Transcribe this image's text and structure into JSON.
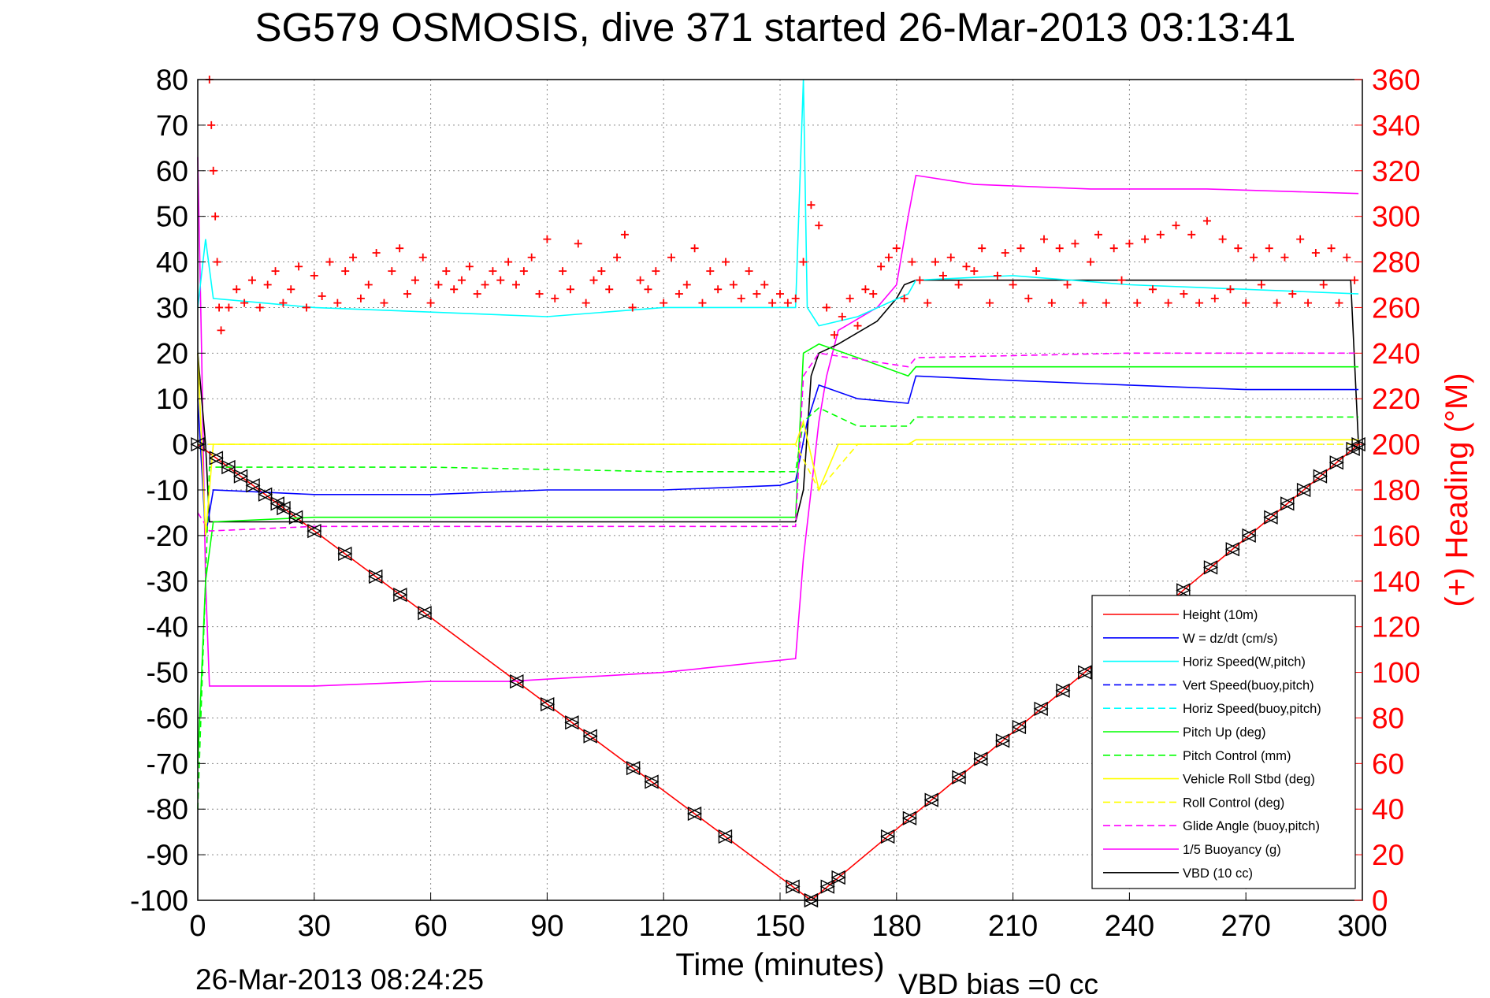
{
  "chart_data": {
    "type": "line",
    "title": "SG579 OSMOSIS, dive 371 started 26-Mar-2013 03:13:41",
    "xlabel": "Time (minutes)",
    "ylabel_right": "(+) Heading (°M)",
    "footer_left": "26-Mar-2013 08:24:25",
    "footer_right": "VBD bias =0 cc",
    "xlim": [
      0,
      300
    ],
    "ylim": [
      -100,
      80
    ],
    "ylim_right": [
      0,
      360
    ],
    "xticks": [
      "0",
      "30",
      "60",
      "90",
      "120",
      "150",
      "180",
      "210",
      "240",
      "270",
      "300"
    ],
    "yticks": [
      "80",
      "70",
      "60",
      "50",
      "40",
      "30",
      "20",
      "10",
      "0",
      "-10",
      "-20",
      "-30",
      "-40",
      "-50",
      "-60",
      "-70",
      "-80",
      "-90",
      "-100"
    ],
    "yticks_right": [
      "360",
      "340",
      "320",
      "300",
      "280",
      "260",
      "240",
      "220",
      "200",
      "180",
      "160",
      "140",
      "120",
      "100",
      "80",
      "60",
      "40",
      "20",
      "0"
    ],
    "grid": true,
    "legend_position": "bottom-right",
    "colors": {
      "height": "#ff0000",
      "w": "#0000ff",
      "horiz_speed": "#00ffff",
      "pitch": "#00ff00",
      "roll": "#ffff00",
      "glide": "#ff00ff",
      "buoyancy": "#ff00ff",
      "vbd": "#000000",
      "heading": "#ff0000",
      "markers": "#000000"
    },
    "legend": [
      {
        "name": "Height (10m)",
        "color": "#ff0000",
        "dash": "solid"
      },
      {
        "name": "W = dz/dt (cm/s)",
        "color": "#0000ff",
        "dash": "solid"
      },
      {
        "name": "Horiz Speed(W,pitch)",
        "color": "#00ffff",
        "dash": "solid"
      },
      {
        "name": "Vert Speed(buoy,pitch)",
        "color": "#0000ff",
        "dash": "dashed"
      },
      {
        "name": "Horiz Speed(buoy,pitch)",
        "color": "#00ffff",
        "dash": "dashed"
      },
      {
        "name": "Pitch Up (deg)",
        "color": "#00ff00",
        "dash": "solid"
      },
      {
        "name": "Pitch Control (mm)",
        "color": "#00ff00",
        "dash": "dashed"
      },
      {
        "name": "Vehicle Roll Stbd (deg)",
        "color": "#ffff00",
        "dash": "solid"
      },
      {
        "name": "Roll Control (deg)",
        "color": "#ffff00",
        "dash": "dashed"
      },
      {
        "name": "Glide Angle (buoy,pitch)",
        "color": "#ff00ff",
        "dash": "dashed"
      },
      {
        "name": "1/5 Buoyancy (g)",
        "color": "#ff00ff",
        "dash": "solid"
      },
      {
        "name": "VBD (10 cc)",
        "color": "#000000",
        "dash": "solid"
      }
    ],
    "series": [
      {
        "key": "height",
        "dash": "solid",
        "color": "#ff0000",
        "x": [
          0,
          158,
          299
        ],
        "y": [
          0,
          -100,
          0
        ]
      },
      {
        "key": "buoyancy",
        "dash": "solid",
        "color": "#ff00ff",
        "x": [
          0,
          1,
          2,
          3,
          30,
          60,
          80,
          120,
          154,
          156,
          160,
          162,
          165,
          175,
          180,
          183,
          185,
          200,
          230,
          260,
          299
        ],
        "y": [
          63,
          20,
          -30,
          -53,
          -53,
          -52,
          -52,
          -50,
          -47,
          -25,
          5,
          15,
          25,
          30,
          35,
          50,
          59,
          57,
          56,
          56,
          55
        ]
      },
      {
        "key": "vbd",
        "dash": "solid",
        "color": "#000000",
        "x": [
          0,
          2,
          3,
          154,
          156,
          158,
          160,
          165,
          175,
          180,
          182,
          185,
          240,
          297,
          299
        ],
        "y": [
          20,
          0,
          -17,
          -17,
          -10,
          15,
          20,
          22,
          27,
          32,
          35,
          36,
          36,
          36,
          0
        ]
      },
      {
        "key": "w",
        "dash": "solid",
        "color": "#0000ff",
        "x": [
          0,
          2,
          4,
          30,
          60,
          90,
          120,
          150,
          154,
          157,
          160,
          170,
          183,
          185,
          210,
          240,
          270,
          299
        ],
        "y": [
          10,
          -20,
          -10,
          -11,
          -11,
          -10,
          -10,
          -9,
          -8,
          5,
          13,
          10,
          9,
          15,
          14,
          13,
          12,
          12
        ]
      },
      {
        "key": "pitch",
        "dash": "solid",
        "color": "#00ff00",
        "x": [
          0,
          2,
          4,
          30,
          60,
          120,
          154,
          156,
          160,
          170,
          183,
          185,
          240,
          299
        ],
        "y": [
          -70,
          -30,
          -17,
          -16,
          -16,
          -16,
          -16,
          20,
          22,
          19,
          15,
          17,
          17,
          17
        ]
      },
      {
        "key": "pitch_control",
        "dash": "dashed",
        "color": "#00ff00",
        "x": [
          0,
          3,
          30,
          60,
          120,
          154,
          156,
          160,
          170,
          183,
          185,
          240,
          299
        ],
        "y": [
          -80,
          -5,
          -5,
          -5,
          -6,
          -6,
          5,
          8,
          4,
          4,
          6,
          6,
          6
        ]
      },
      {
        "key": "glide",
        "dash": "dashed",
        "color": "#ff00ff",
        "x": [
          0,
          3,
          30,
          60,
          120,
          154,
          156,
          160,
          183,
          185,
          240,
          299
        ],
        "y": [
          -15,
          -19,
          -18,
          -18,
          -18,
          -18,
          15,
          20,
          17,
          19,
          20,
          20
        ]
      },
      {
        "key": "horiz_speed",
        "dash": "solid",
        "color": "#00ffff",
        "x": [
          0,
          2,
          4,
          30,
          60,
          90,
          120,
          150,
          154,
          156,
          157,
          160,
          170,
          183,
          185,
          210,
          240,
          270,
          299
        ],
        "y": [
          30,
          45,
          32,
          30,
          29,
          28,
          30,
          30,
          30,
          80,
          30,
          26,
          28,
          33,
          36,
          37,
          35,
          34,
          33
        ]
      },
      {
        "key": "roll",
        "dash": "solid",
        "color": "#ffff00",
        "x": [
          0,
          2,
          4,
          154,
          156,
          160,
          165,
          170,
          183,
          185,
          240,
          299
        ],
        "y": [
          20,
          -20,
          0,
          0,
          5,
          -10,
          0,
          0,
          0,
          1,
          1,
          1
        ]
      },
      {
        "key": "roll_control",
        "dash": "dashed",
        "color": "#ffff00",
        "x": [
          0,
          4,
          154,
          160,
          170,
          183,
          299
        ],
        "y": [
          0,
          0,
          0,
          -10,
          0,
          0,
          0
        ]
      }
    ],
    "heading": {
      "color": "#ff0000",
      "x": [
        3,
        3.5,
        4,
        4.5,
        5,
        5.5,
        6,
        8,
        10,
        12,
        14,
        16,
        18,
        20,
        22,
        24,
        26,
        28,
        30,
        32,
        34,
        36,
        38,
        40,
        42,
        44,
        46,
        48,
        50,
        52,
        54,
        56,
        58,
        60,
        62,
        64,
        66,
        68,
        70,
        72,
        74,
        76,
        78,
        80,
        82,
        84,
        86,
        88,
        90,
        92,
        94,
        96,
        98,
        100,
        102,
        104,
        106,
        108,
        110,
        112,
        114,
        116,
        118,
        120,
        122,
        124,
        126,
        128,
        130,
        132,
        134,
        136,
        138,
        140,
        142,
        144,
        146,
        148,
        150,
        152,
        154,
        156,
        158,
        160,
        162,
        164,
        166,
        168,
        170,
        172,
        174,
        176,
        178,
        180,
        182,
        184,
        186,
        188,
        190,
        192,
        194,
        196,
        198,
        200,
        202,
        204,
        206,
        208,
        210,
        212,
        214,
        216,
        218,
        220,
        222,
        224,
        226,
        228,
        230,
        232,
        234,
        236,
        238,
        240,
        242,
        244,
        246,
        248,
        250,
        252,
        254,
        256,
        258,
        260,
        262,
        264,
        266,
        268,
        270,
        272,
        274,
        276,
        278,
        280,
        282,
        284,
        286,
        288,
        290,
        292,
        294,
        296,
        298
      ],
      "y": [
        360,
        340,
        320,
        300,
        280,
        260,
        250,
        260,
        268,
        262,
        272,
        260,
        270,
        276,
        262,
        268,
        278,
        260,
        274,
        265,
        280,
        262,
        276,
        282,
        264,
        270,
        284,
        262,
        276,
        286,
        266,
        272,
        282,
        262,
        270,
        276,
        268,
        272,
        278,
        266,
        270,
        276,
        272,
        280,
        270,
        276,
        282,
        266,
        290,
        264,
        276,
        268,
        288,
        262,
        272,
        276,
        268,
        282,
        292,
        260,
        272,
        268,
        276,
        262,
        282,
        266,
        270,
        286,
        262,
        276,
        268,
        280,
        270,
        264,
        276,
        266,
        270,
        262,
        266,
        262,
        264,
        280,
        305,
        296,
        260,
        248,
        256,
        264,
        252,
        268,
        266,
        278,
        282,
        286,
        264,
        280,
        272,
        262,
        280,
        274,
        282,
        270,
        278,
        276,
        286,
        262,
        274,
        284,
        270,
        286,
        264,
        276,
        290,
        262,
        286,
        270,
        288,
        262,
        280,
        292,
        262,
        286,
        272,
        288,
        262,
        290,
        268,
        292,
        262,
        296,
        266,
        292,
        262,
        298,
        264,
        290,
        268,
        286,
        262,
        282,
        270,
        286,
        262,
        282,
        266,
        290,
        262,
        284,
        270,
        286,
        262,
        282,
        272
      ]
    },
    "marker_depths": [
      0,
      -3,
      -5,
      -7,
      -9,
      -11,
      -13,
      -14,
      -16,
      -19,
      -24,
      -29,
      -33,
      -37,
      -52,
      -57,
      -61,
      -64,
      -71,
      -74,
      -81,
      -86,
      -97,
      -100,
      -100,
      -97,
      -95,
      -86,
      -82,
      -78,
      -73,
      -69,
      -65,
      -62,
      -58,
      -54,
      -50,
      -47,
      -43,
      -38,
      -32,
      -27,
      -23,
      -20,
      -16,
      -13,
      -10,
      -7,
      -4,
      -1,
      0
    ]
  }
}
